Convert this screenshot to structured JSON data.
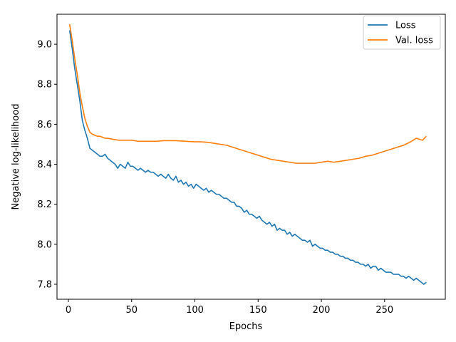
{
  "chart_data": {
    "type": "line",
    "xlabel": "Epochs",
    "ylabel": "Negative log-likelihood",
    "xlim": [
      -9,
      298
    ],
    "ylim": [
      7.725,
      9.15
    ],
    "xticks": [
      0,
      50,
      100,
      150,
      200,
      250
    ],
    "yticks": [
      7.8,
      8.0,
      8.2,
      8.4,
      8.6,
      8.8,
      9.0
    ],
    "ytick_labels": [
      "7.8",
      "8.0",
      "8.2",
      "8.4",
      "8.6",
      "8.8",
      "9.0"
    ],
    "grid": false,
    "legend": "top-right",
    "series": [
      {
        "name": "Loss",
        "color": "#1f77b4",
        "x": [
          1,
          3,
          5,
          7,
          9,
          11,
          13,
          15,
          17,
          19,
          21,
          23,
          25,
          27,
          29,
          31,
          33,
          35,
          37,
          39,
          41,
          43,
          45,
          47,
          49,
          51,
          53,
          55,
          57,
          59,
          61,
          63,
          65,
          67,
          69,
          71,
          73,
          75,
          77,
          79,
          81,
          83,
          85,
          87,
          89,
          91,
          93,
          95,
          97,
          99,
          101,
          103,
          105,
          107,
          109,
          111,
          113,
          115,
          117,
          119,
          121,
          123,
          125,
          127,
          129,
          131,
          133,
          135,
          137,
          139,
          141,
          143,
          145,
          147,
          149,
          151,
          153,
          155,
          157,
          159,
          161,
          163,
          165,
          167,
          169,
          171,
          173,
          175,
          177,
          179,
          181,
          183,
          185,
          187,
          189,
          191,
          193,
          195,
          197,
          199,
          201,
          203,
          205,
          207,
          209,
          211,
          213,
          215,
          217,
          219,
          221,
          223,
          225,
          227,
          229,
          231,
          233,
          235,
          237,
          239,
          241,
          243,
          245,
          247,
          249,
          251,
          253,
          255,
          257,
          259,
          261,
          263,
          265,
          267,
          269,
          271,
          273,
          275,
          277,
          279,
          281,
          283
        ],
        "values": [
          9.07,
          8.98,
          8.88,
          8.8,
          8.72,
          8.62,
          8.57,
          8.53,
          8.48,
          8.47,
          8.46,
          8.45,
          8.44,
          8.44,
          8.45,
          8.43,
          8.42,
          8.41,
          8.4,
          8.38,
          8.4,
          8.39,
          8.38,
          8.41,
          8.39,
          8.39,
          8.38,
          8.37,
          8.38,
          8.37,
          8.36,
          8.37,
          8.36,
          8.36,
          8.35,
          8.34,
          8.35,
          8.34,
          8.33,
          8.35,
          8.33,
          8.32,
          8.34,
          8.31,
          8.32,
          8.3,
          8.31,
          8.29,
          8.3,
          8.28,
          8.3,
          8.29,
          8.28,
          8.27,
          8.28,
          8.26,
          8.27,
          8.26,
          8.25,
          8.25,
          8.24,
          8.23,
          8.23,
          8.22,
          8.21,
          8.21,
          8.19,
          8.19,
          8.18,
          8.16,
          8.17,
          8.15,
          8.15,
          8.14,
          8.13,
          8.14,
          8.12,
          8.11,
          8.1,
          8.11,
          8.09,
          8.1,
          8.07,
          8.08,
          8.07,
          8.07,
          8.05,
          8.06,
          8.04,
          8.05,
          8.04,
          8.03,
          8.02,
          8.02,
          8.01,
          8.02,
          7.99,
          8.0,
          7.99,
          7.98,
          7.98,
          7.97,
          7.97,
          7.96,
          7.96,
          7.95,
          7.95,
          7.94,
          7.94,
          7.93,
          7.93,
          7.92,
          7.92,
          7.91,
          7.91,
          7.9,
          7.9,
          7.89,
          7.9,
          7.88,
          7.89,
          7.89,
          7.87,
          7.88,
          7.87,
          7.86,
          7.86,
          7.86,
          7.85,
          7.85,
          7.85,
          7.84,
          7.84,
          7.83,
          7.84,
          7.83,
          7.82,
          7.83,
          7.82,
          7.81,
          7.8,
          7.81
        ]
      },
      {
        "name": "Val. loss",
        "color": "#ff7f0e",
        "x": [
          1,
          3,
          5,
          7,
          9,
          11,
          13,
          15,
          17,
          19,
          21,
          23,
          25,
          27,
          29,
          31,
          35,
          40,
          45,
          50,
          55,
          60,
          65,
          70,
          75,
          80,
          85,
          90,
          95,
          100,
          105,
          110,
          115,
          120,
          125,
          130,
          135,
          140,
          145,
          150,
          155,
          160,
          165,
          170,
          175,
          180,
          185,
          190,
          195,
          200,
          205,
          210,
          215,
          220,
          225,
          230,
          235,
          240,
          245,
          250,
          255,
          260,
          265,
          270,
          275,
          280,
          283
        ],
        "values": [
          9.1,
          9.02,
          8.93,
          8.85,
          8.76,
          8.69,
          8.63,
          8.59,
          8.56,
          8.55,
          8.545,
          8.54,
          8.54,
          8.535,
          8.53,
          8.53,
          8.525,
          8.52,
          8.52,
          8.52,
          8.515,
          8.515,
          8.515,
          8.515,
          8.518,
          8.518,
          8.518,
          8.516,
          8.514,
          8.512,
          8.512,
          8.51,
          8.505,
          8.5,
          8.495,
          8.485,
          8.475,
          8.465,
          8.455,
          8.445,
          8.435,
          8.425,
          8.42,
          8.415,
          8.41,
          8.405,
          8.405,
          8.405,
          8.405,
          8.41,
          8.415,
          8.41,
          8.415,
          8.42,
          8.425,
          8.43,
          8.44,
          8.445,
          8.455,
          8.465,
          8.475,
          8.485,
          8.495,
          8.51,
          8.53,
          8.52,
          8.54
        ]
      }
    ]
  }
}
